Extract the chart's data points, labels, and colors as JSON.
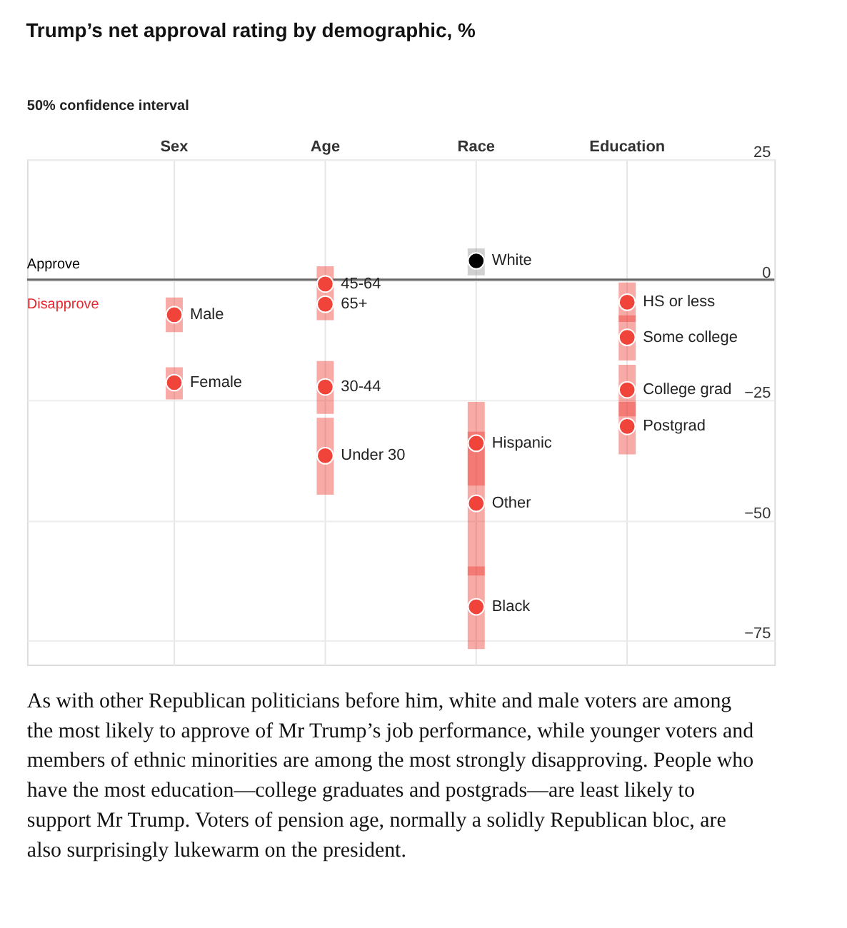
{
  "chart_data": {
    "type": "scatter",
    "title": "Trump’s net approval rating by demographic, %",
    "categories": [
      "Sex",
      "Age",
      "Race",
      "Education"
    ],
    "ylim": [
      -80,
      25
    ],
    "yticks": [
      25,
      0,
      -25,
      -50,
      -75
    ],
    "grid": true,
    "marker": "circle",
    "ref_lines": [
      {
        "axis": "y",
        "value": 0,
        "color": "#666666"
      }
    ],
    "annotations": [
      "50% confidence interval",
      "Approve",
      "Disapprove",
      "As with other Republican politicians before him, white and male voters are among the most likely to approve of Mr Trump’s job performance, while younger voters and members of ethnic minorities are among the most strongly disapproving. People who have the most education—college graduates and postgrads—are least likely to support Mr Trump. Voters of pension age, normally a solidly Republican bloc, are also surprisingly lukewarm on the president."
    ],
    "series": [
      {
        "name": "Male",
        "color": "#f0433a",
        "x": [
          "Sex"
        ],
        "values": [
          -7.3
        ],
        "errors": [
          [
            -10.9,
            -3.7
          ]
        ]
      },
      {
        "name": "Female",
        "color": "#f0433a",
        "x": [
          "Sex"
        ],
        "values": [
          -21.4
        ],
        "errors": [
          [
            -24.9,
            -18.2
          ]
        ]
      },
      {
        "name": "45-64",
        "color": "#f0433a",
        "x": [
          "Age"
        ],
        "values": [
          -0.9
        ],
        "errors": [
          [
            -3.0,
            2.8
          ]
        ]
      },
      {
        "name": "65+",
        "color": "#f0433a",
        "x": [
          "Age"
        ],
        "values": [
          -5.1
        ],
        "errors": [
          [
            -8.4,
            -3.0
          ]
        ]
      },
      {
        "name": "30-44",
        "color": "#f0433a",
        "x": [
          "Age"
        ],
        "values": [
          -22.3
        ],
        "errors": [
          [
            -27.9,
            -16.9
          ]
        ]
      },
      {
        "name": "Under 30",
        "color": "#f0433a",
        "x": [
          "Age"
        ],
        "values": [
          -36.6
        ],
        "errors": [
          [
            -44.7,
            -28.7
          ]
        ]
      },
      {
        "name": "White",
        "color": "#000000",
        "x": [
          "Race"
        ],
        "values": [
          3.9
        ],
        "errors": [
          [
            0.9,
            6.5
          ]
        ]
      },
      {
        "name": "Hispanic",
        "color": "#f0433a",
        "x": [
          "Race"
        ],
        "values": [
          -34.0
        ],
        "errors": [
          [
            -42.8,
            -25.4
          ]
        ]
      },
      {
        "name": "Other",
        "color": "#f0433a",
        "x": [
          "Race"
        ],
        "values": [
          -46.5
        ],
        "errors": [
          [
            -61.5,
            -31.6
          ]
        ]
      },
      {
        "name": "Black",
        "color": "#f0433a",
        "x": [
          "Race"
        ],
        "values": [
          -68.0
        ],
        "errors": [
          [
            -76.8,
            -59.6
          ]
        ]
      },
      {
        "name": "HS or less",
        "color": "#f0433a",
        "x": [
          "Education"
        ],
        "values": [
          -4.7
        ],
        "errors": [
          [
            -8.8,
            -0.6
          ]
        ]
      },
      {
        "name": "Some college",
        "color": "#f0433a",
        "x": [
          "Education"
        ],
        "values": [
          -12.0
        ],
        "errors": [
          [
            -16.8,
            -7.4
          ]
        ]
      },
      {
        "name": "College grad",
        "color": "#f0433a",
        "x": [
          "Education"
        ],
        "values": [
          -22.9
        ],
        "errors": [
          [
            -28.4,
            -17.7
          ]
        ]
      },
      {
        "name": "Postgrad",
        "color": "#f0433a",
        "x": [
          "Education"
        ],
        "values": [
          -30.5
        ],
        "errors": [
          [
            -36.3,
            -25.4
          ]
        ]
      }
    ]
  }
}
